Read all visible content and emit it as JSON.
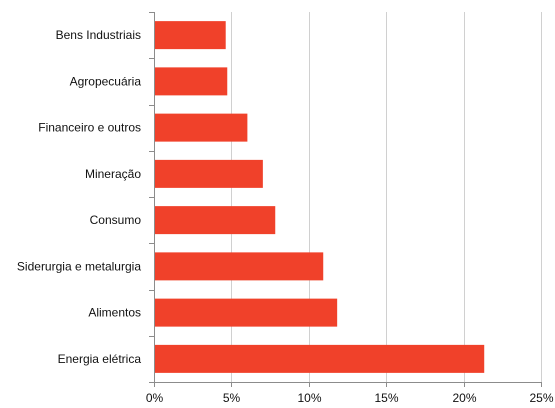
{
  "chart_data": {
    "type": "bar",
    "orientation": "horizontal",
    "categories": [
      "Bens Industriais",
      "Agropecuária",
      "Financeiro e outros",
      "Mineração",
      "Consumo",
      "Siderurgia e metalurgia",
      "Alimentos",
      "Energia elétrica"
    ],
    "values": [
      4.6,
      4.7,
      6.0,
      7.0,
      7.8,
      10.9,
      11.8,
      21.3
    ],
    "value_unit": "%",
    "xlim": [
      0,
      25
    ],
    "x_ticks": [
      0,
      5,
      10,
      15,
      20,
      25
    ],
    "x_tick_labels": [
      "0%",
      "5%",
      "10%",
      "15%",
      "20%",
      "25%"
    ],
    "title": "",
    "xlabel": "",
    "ylabel": "",
    "grid": "vertical",
    "legend": "none",
    "bar_color": "#f0412a"
  }
}
